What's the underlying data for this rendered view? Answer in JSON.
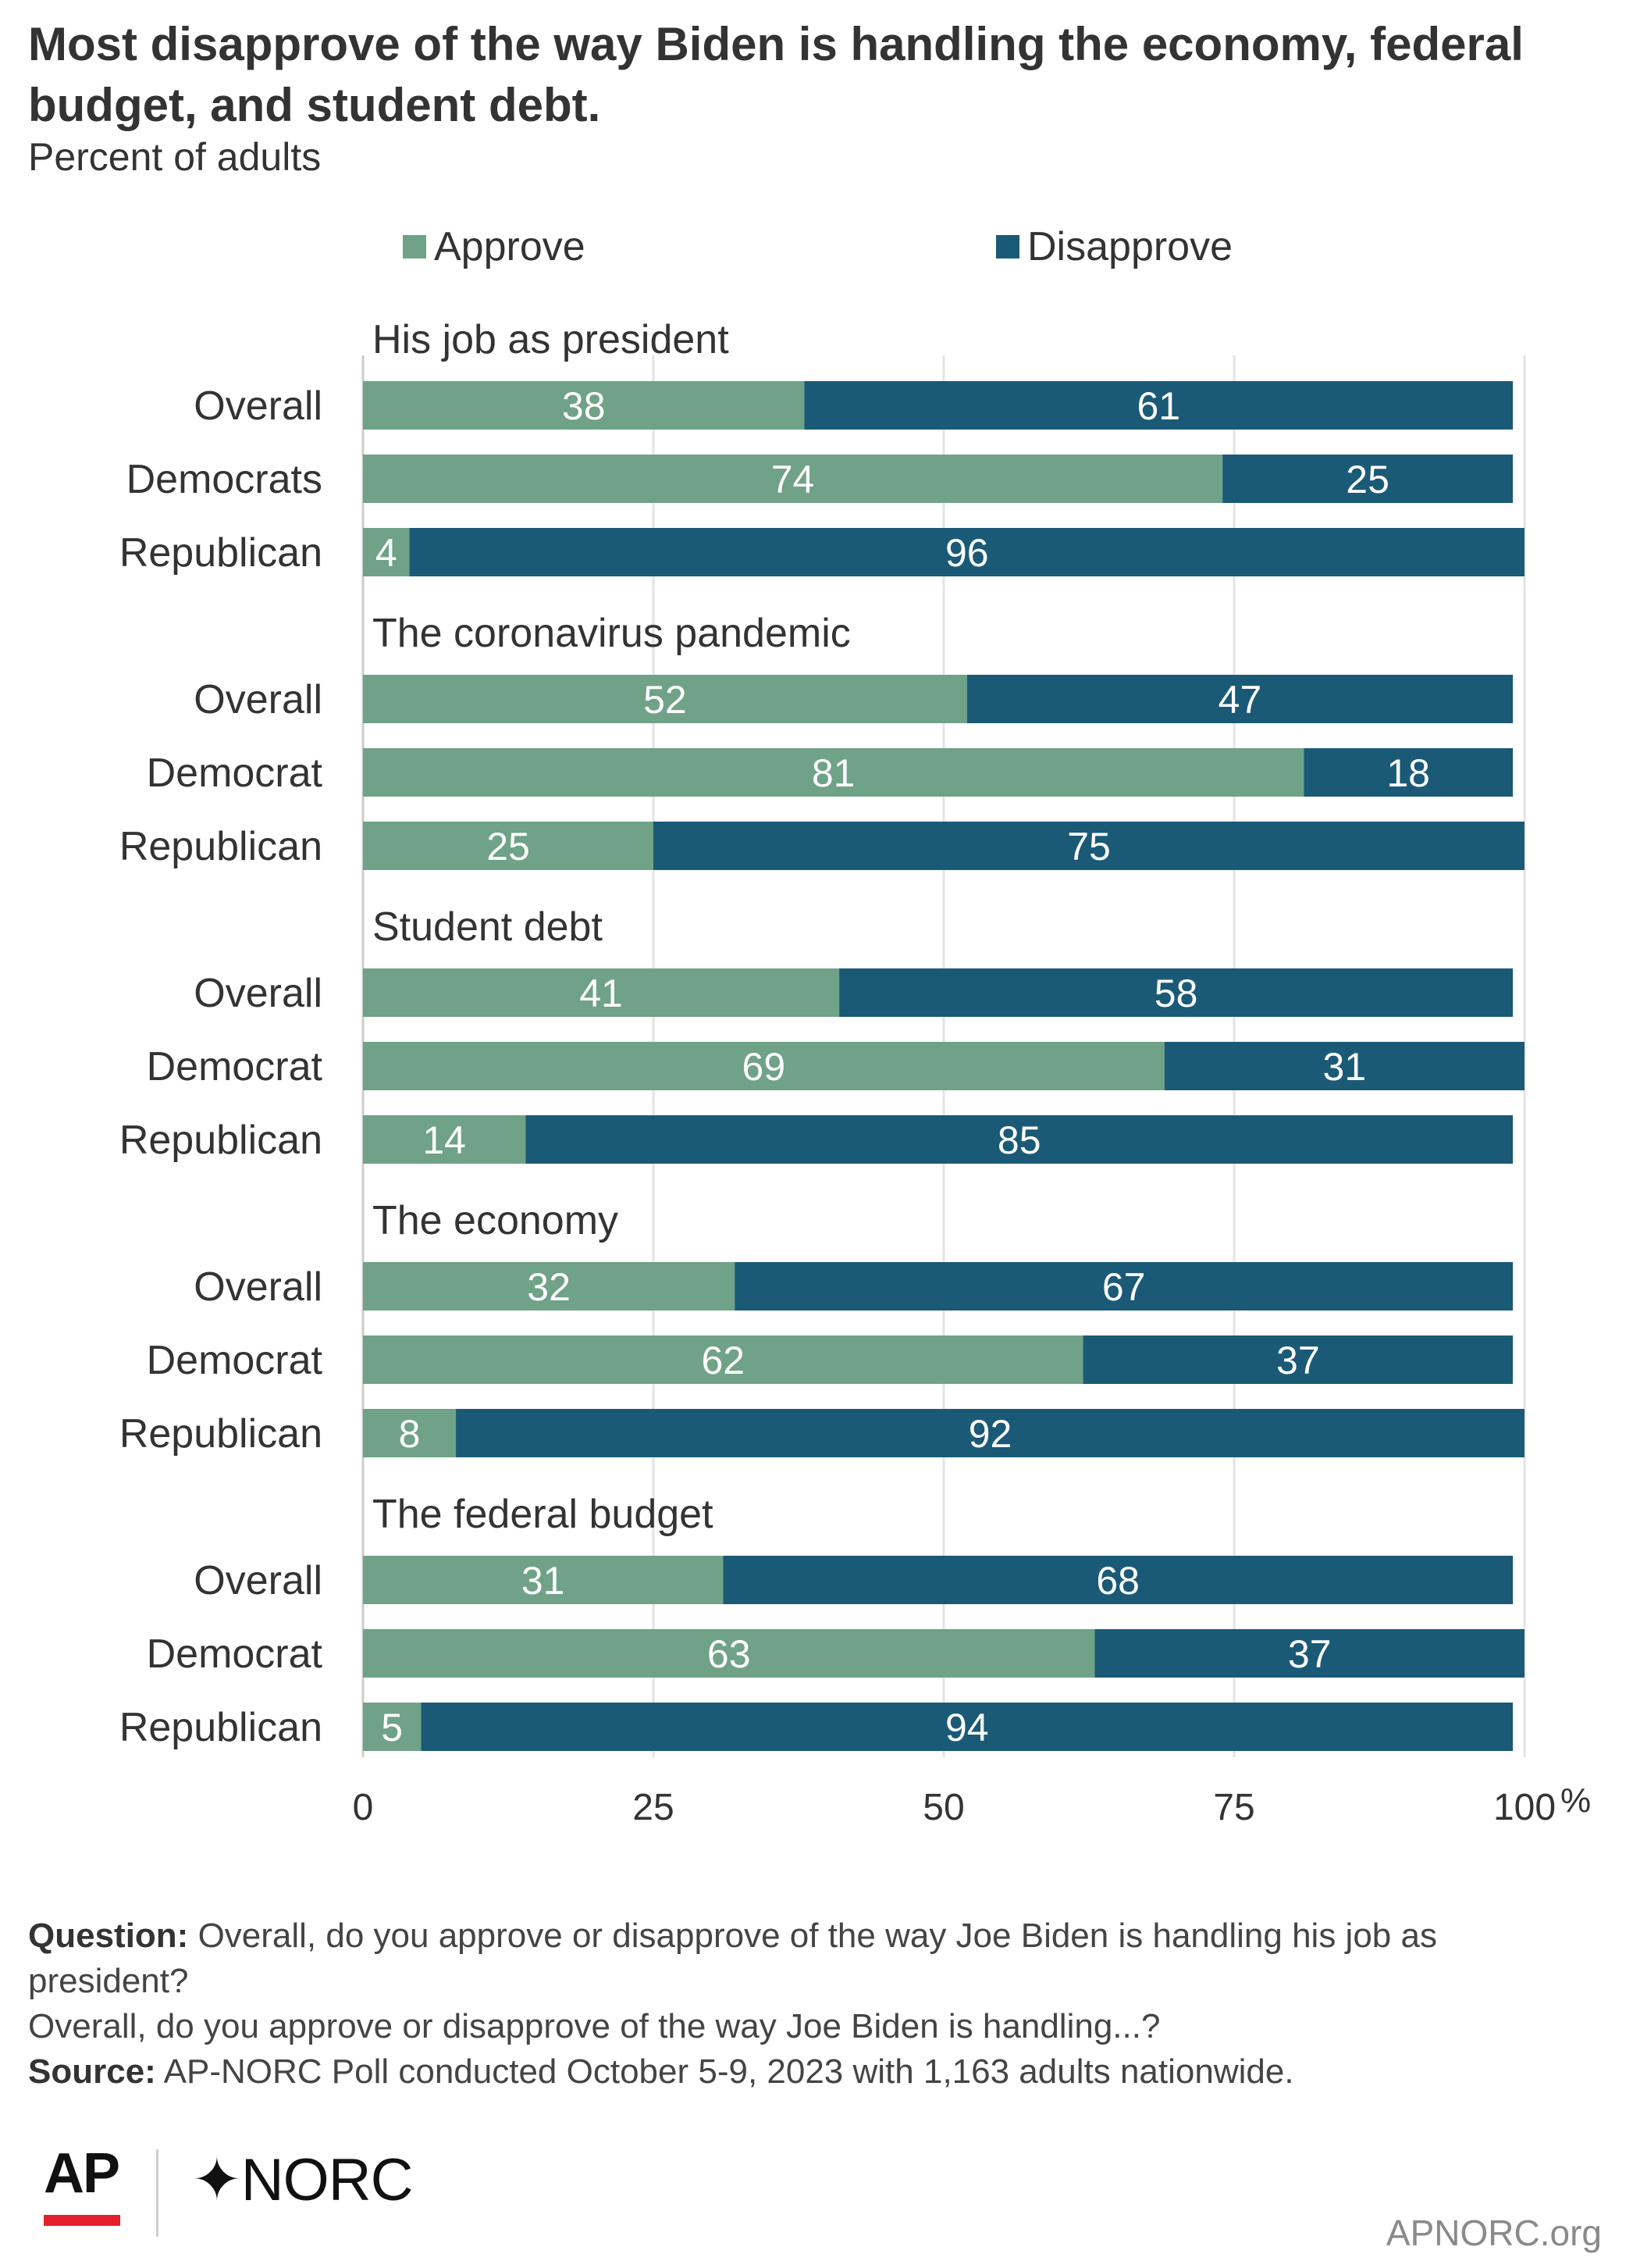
{
  "header": {
    "title": "Most disapprove of the way Biden is handling the economy, federal budget, and student debt.",
    "subtitle": "Percent of adults"
  },
  "legend": [
    {
      "label": "Approve",
      "color": "#6fa287"
    },
    {
      "label": "Disapprove",
      "color": "#1a5a77"
    }
  ],
  "chart_data": {
    "type": "bar",
    "orientation": "horizontal",
    "stacked": true,
    "xlim": [
      0,
      100
    ],
    "x_ticks": [
      "0",
      "25",
      "50",
      "75",
      "100"
    ],
    "x_unit": "%",
    "grid": true,
    "legend_position": "top",
    "series": [
      {
        "name": "Approve",
        "color": "#6fa287"
      },
      {
        "name": "Disapprove",
        "color": "#1a5a77"
      }
    ],
    "groups": [
      {
        "title": "His job as president",
        "rows": [
          {
            "label": "Overall",
            "approve": 38,
            "disapprove": 61
          },
          {
            "label": "Democrats",
            "approve": 74,
            "disapprove": 25
          },
          {
            "label": "Republican",
            "approve": 4,
            "disapprove": 96
          }
        ]
      },
      {
        "title": "The coronavirus pandemic",
        "rows": [
          {
            "label": "Overall",
            "approve": 52,
            "disapprove": 47
          },
          {
            "label": "Democrat",
            "approve": 81,
            "disapprove": 18
          },
          {
            "label": "Republican",
            "approve": 25,
            "disapprove": 75
          }
        ]
      },
      {
        "title": "Student debt",
        "rows": [
          {
            "label": "Overall",
            "approve": 41,
            "disapprove": 58
          },
          {
            "label": "Democrat",
            "approve": 69,
            "disapprove": 31
          },
          {
            "label": "Republican",
            "approve": 14,
            "disapprove": 85
          }
        ]
      },
      {
        "title": "The economy",
        "rows": [
          {
            "label": "Overall",
            "approve": 32,
            "disapprove": 67
          },
          {
            "label": "Democrat",
            "approve": 62,
            "disapprove": 37
          },
          {
            "label": "Republican",
            "approve": 8,
            "disapprove": 92
          }
        ]
      },
      {
        "title": "The federal budget",
        "rows": [
          {
            "label": "Overall",
            "approve": 31,
            "disapprove": 68
          },
          {
            "label": "Democrat",
            "approve": 63,
            "disapprove": 37
          },
          {
            "label": "Republican",
            "approve": 5,
            "disapprove": 94
          }
        ]
      }
    ]
  },
  "notes": {
    "question_label": "Question:",
    "question_text": "Overall, do you approve or disapprove of the way Joe Biden is handling his job as president?",
    "question_text_2": "Overall, do you approve or disapprove of the way Joe Biden is handling...?",
    "source_label": "Source:",
    "source_text": "AP-NORC Poll conducted October 5-9, 2023 with 1,163 adults nationwide."
  },
  "footer": {
    "logo_ap": "AP",
    "logo_norc": "NORC",
    "site": "APNORC.org"
  }
}
